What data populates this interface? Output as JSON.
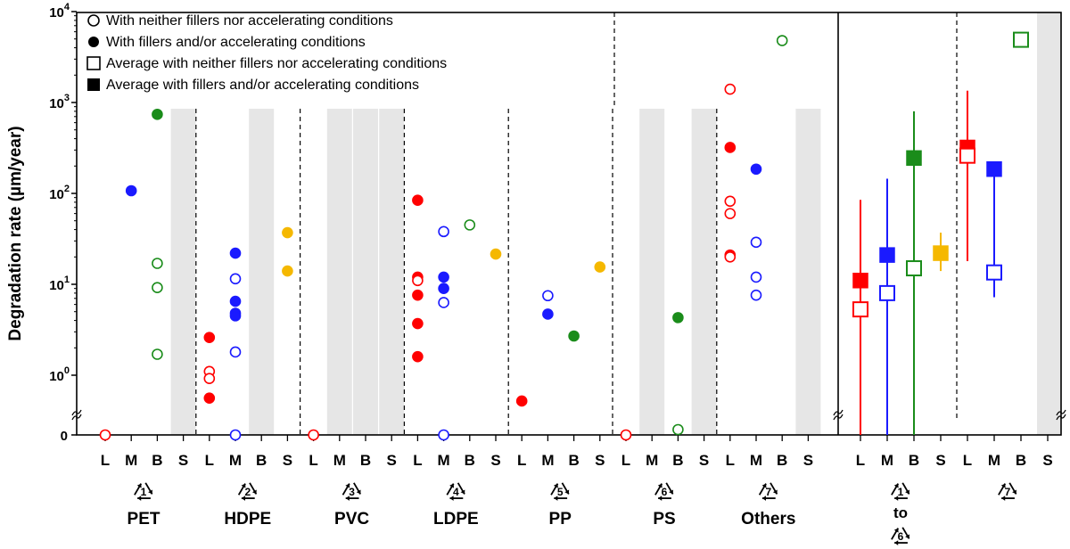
{
  "chart_data": {
    "type": "scatter",
    "ylabel": "Degradation rate (µm/year)",
    "yscale": "log",
    "ylim": [
      0,
      10000
    ],
    "y_ticks": [
      {
        "value": 0,
        "base": "0",
        "exp": ""
      },
      {
        "value": 1,
        "base": "10",
        "exp": "0"
      },
      {
        "value": 10,
        "base": "10",
        "exp": "1"
      },
      {
        "value": 100,
        "base": "10",
        "exp": "2"
      },
      {
        "value": 1000,
        "base": "10",
        "exp": "3"
      },
      {
        "value": 10000,
        "base": "10",
        "exp": "4"
      }
    ],
    "legend": [
      {
        "marker": "open-circle",
        "label": "With neither fillers nor accelerating conditions"
      },
      {
        "marker": "filled-circle",
        "label": "With fillers and/or accelerating conditions"
      },
      {
        "marker": "open-square",
        "label": "Average with neither fillers nor accelerating conditions"
      },
      {
        "marker": "filled-square",
        "label": "Average with fillers and/or accelerating conditions"
      }
    ],
    "colors": {
      "L": "#ff0000",
      "M": "#1a1aff",
      "B": "#1a8c1a",
      "S": "#f5b800"
    },
    "condition_codes": [
      "L",
      "M",
      "B",
      "S"
    ],
    "left_groups": [
      {
        "label": "PET",
        "code": "1",
        "shaded": [
          "S"
        ]
      },
      {
        "label": "HDPE",
        "code": "2",
        "shaded": [
          "B"
        ]
      },
      {
        "label": "PVC",
        "code": "3",
        "shaded": [
          "M",
          "B",
          "S"
        ]
      },
      {
        "label": "LDPE",
        "code": "4",
        "shaded": []
      },
      {
        "label": "PP",
        "code": "5",
        "shaded": []
      },
      {
        "label": "PS",
        "code": "6",
        "shaded": [
          "M",
          "S"
        ]
      },
      {
        "label": "Others",
        "code": "7",
        "shaded": [
          "S"
        ]
      }
    ],
    "points": [
      {
        "g": 0,
        "c": "L",
        "y": 0,
        "filled": false
      },
      {
        "g": 0,
        "c": "M",
        "y": 107,
        "filled": true
      },
      {
        "g": 0,
        "c": "B",
        "y": 740,
        "filled": true
      },
      {
        "g": 0,
        "c": "B",
        "y": 17,
        "filled": false
      },
      {
        "g": 0,
        "c": "B",
        "y": 9.2,
        "filled": false
      },
      {
        "g": 0,
        "c": "B",
        "y": 1.7,
        "filled": false
      },
      {
        "g": 1,
        "c": "L",
        "y": 2.6,
        "filled": true
      },
      {
        "g": 1,
        "c": "L",
        "y": 1.1,
        "filled": false
      },
      {
        "g": 1,
        "c": "L",
        "y": 0.92,
        "filled": false
      },
      {
        "g": 1,
        "c": "L",
        "y": 0.56,
        "filled": true
      },
      {
        "g": 1,
        "c": "M",
        "y": 22,
        "filled": true
      },
      {
        "g": 1,
        "c": "M",
        "y": 11.5,
        "filled": false
      },
      {
        "g": 1,
        "c": "M",
        "y": 6.5,
        "filled": true
      },
      {
        "g": 1,
        "c": "M",
        "y": 4.8,
        "filled": true
      },
      {
        "g": 1,
        "c": "M",
        "y": 4.5,
        "filled": true
      },
      {
        "g": 1,
        "c": "M",
        "y": 1.8,
        "filled": false
      },
      {
        "g": 1,
        "c": "M",
        "y": 0,
        "filled": false
      },
      {
        "g": 1,
        "c": "S",
        "y": 37,
        "filled": true
      },
      {
        "g": 1,
        "c": "S",
        "y": 14,
        "filled": true
      },
      {
        "g": 2,
        "c": "L",
        "y": 0,
        "filled": false
      },
      {
        "g": 3,
        "c": "L",
        "y": 84,
        "filled": true
      },
      {
        "g": 3,
        "c": "L",
        "y": 12,
        "filled": true
      },
      {
        "g": 3,
        "c": "L",
        "y": 11,
        "filled": false
      },
      {
        "g": 3,
        "c": "L",
        "y": 7.6,
        "filled": true
      },
      {
        "g": 3,
        "c": "L",
        "y": 3.7,
        "filled": true
      },
      {
        "g": 3,
        "c": "L",
        "y": 1.6,
        "filled": true
      },
      {
        "g": 3,
        "c": "M",
        "y": 38,
        "filled": false
      },
      {
        "g": 3,
        "c": "M",
        "y": 12,
        "filled": true
      },
      {
        "g": 3,
        "c": "M",
        "y": 9,
        "filled": true
      },
      {
        "g": 3,
        "c": "M",
        "y": 6.3,
        "filled": false
      },
      {
        "g": 3,
        "c": "M",
        "y": 0,
        "filled": false
      },
      {
        "g": 3,
        "c": "B",
        "y": 45,
        "filled": false
      },
      {
        "g": 3,
        "c": "S",
        "y": 21.5,
        "filled": true
      },
      {
        "g": 4,
        "c": "L",
        "y": 0.52,
        "filled": true
      },
      {
        "g": 4,
        "c": "M",
        "y": 7.5,
        "filled": false
      },
      {
        "g": 4,
        "c": "M",
        "y": 4.7,
        "filled": true
      },
      {
        "g": 4,
        "c": "B",
        "y": 2.7,
        "filled": true
      },
      {
        "g": 4,
        "c": "S",
        "y": 15.5,
        "filled": true
      },
      {
        "g": 5,
        "c": "L",
        "y": 0,
        "filled": false
      },
      {
        "g": 5,
        "c": "B",
        "y": 4.3,
        "filled": true
      },
      {
        "g": 5,
        "c": "B",
        "y": 0.15,
        "filled": false
      },
      {
        "g": 6,
        "c": "L",
        "y": 1400,
        "filled": false
      },
      {
        "g": 6,
        "c": "L",
        "y": 320,
        "filled": true
      },
      {
        "g": 6,
        "c": "L",
        "y": 82,
        "filled": false
      },
      {
        "g": 6,
        "c": "L",
        "y": 60,
        "filled": false
      },
      {
        "g": 6,
        "c": "L",
        "y": 21,
        "filled": true
      },
      {
        "g": 6,
        "c": "L",
        "y": 20,
        "filled": false
      },
      {
        "g": 6,
        "c": "M",
        "y": 185,
        "filled": true
      },
      {
        "g": 6,
        "c": "M",
        "y": 29,
        "filled": false
      },
      {
        "g": 6,
        "c": "M",
        "y": 12,
        "filled": false
      },
      {
        "g": 6,
        "c": "M",
        "y": 7.6,
        "filled": false
      },
      {
        "g": 6,
        "c": "B",
        "y": 4800,
        "filled": false
      }
    ],
    "right_groups": [
      {
        "label_top_code": "1",
        "label_mid": "to",
        "label_bottom_code": "6",
        "shaded": []
      },
      {
        "label_top_code": "7",
        "shaded": [
          "S"
        ]
      }
    ],
    "averages": [
      {
        "g": 0,
        "c": "L",
        "avg_open": 5.3,
        "avg_filled": 11,
        "range": [
          0,
          85
        ]
      },
      {
        "g": 0,
        "c": "M",
        "avg_open": 8,
        "avg_filled": 21,
        "range": [
          0,
          145
        ]
      },
      {
        "g": 0,
        "c": "B",
        "avg_open": 15,
        "avg_filled": 245,
        "range": [
          0,
          800
        ]
      },
      {
        "g": 0,
        "c": "S",
        "avg_open": null,
        "avg_filled": 22,
        "range": [
          14,
          37
        ]
      },
      {
        "g": 1,
        "c": "L",
        "avg_open": 260,
        "avg_filled": 320,
        "range": [
          18,
          1350
        ]
      },
      {
        "g": 1,
        "c": "M",
        "avg_open": 13.5,
        "avg_filled": 185,
        "range": [
          7.2,
          185
        ]
      },
      {
        "g": 1,
        "c": "B",
        "avg_open": 4900,
        "avg_filled": null,
        "range": null
      }
    ]
  }
}
